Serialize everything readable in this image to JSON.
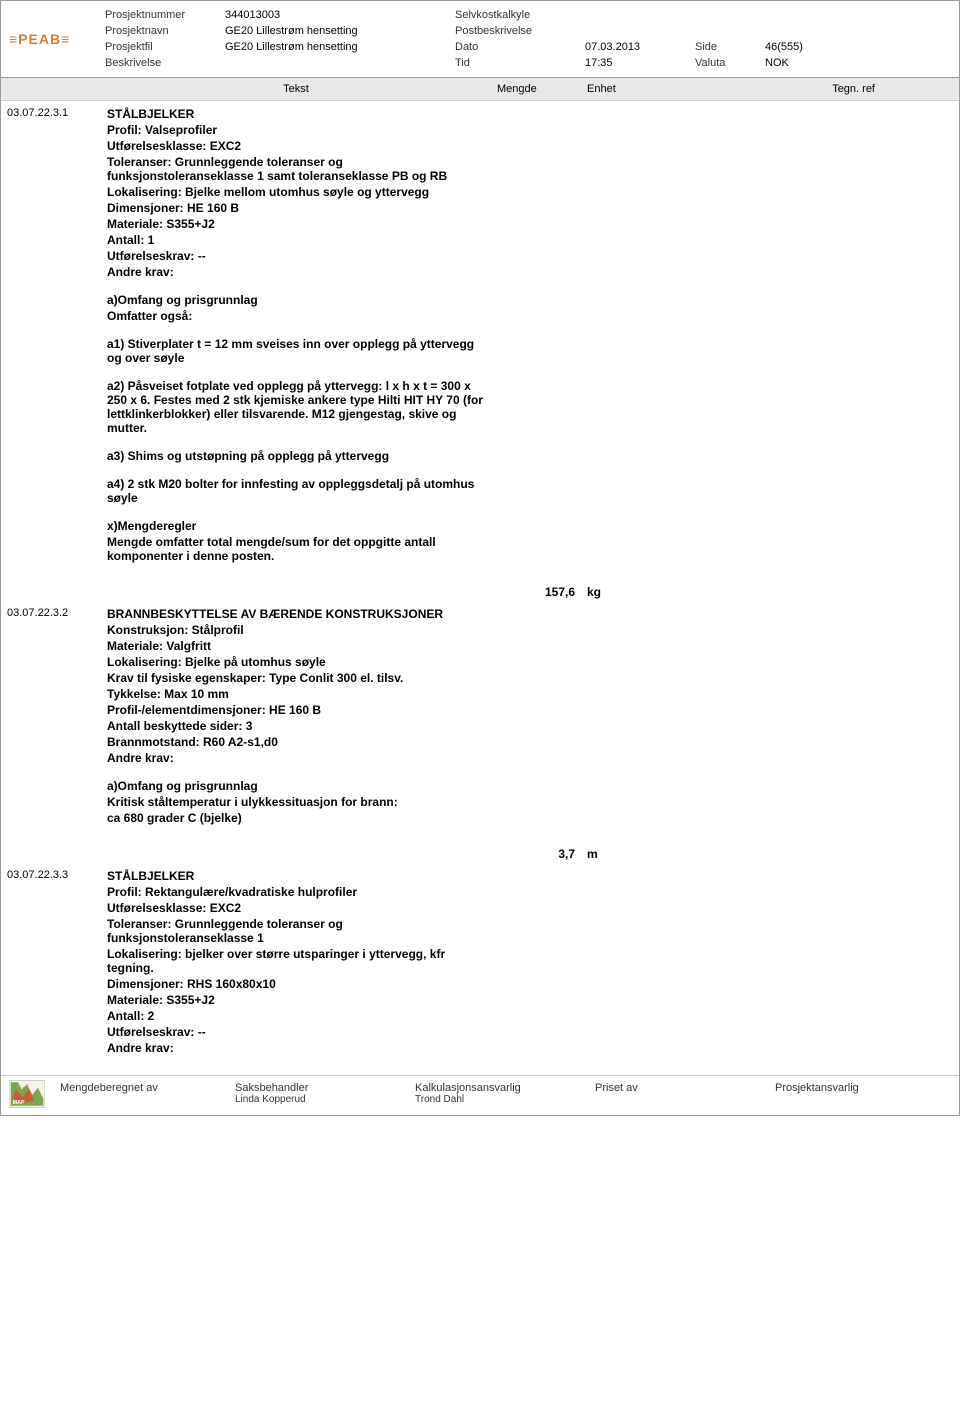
{
  "header": {
    "labels": {
      "prosjektnummer": "Prosjektnummer",
      "prosjektnavn": "Prosjektnavn",
      "prosjektfil": "Prosjektfil",
      "beskrivelse": "Beskrivelse"
    },
    "prosjektnummer": "344013003",
    "prosjektnavn": "GE20 Lillestrøm hensetting",
    "prosjektfil": "GE20 Lillestrøm hensetting",
    "right": {
      "selvkost": "Selvkostkalkyle",
      "postbeskrivelse": "Postbeskrivelse",
      "dato_label": "Dato",
      "tid_label": "Tid",
      "dato": "07.03.2013",
      "tid": "17:35",
      "side_label": "Side",
      "valuta_label": "Valuta",
      "side": "46(555)",
      "valuta": "NOK"
    }
  },
  "columns": {
    "tekst": "Tekst",
    "mengde": "Mengde",
    "enhet": "Enhet",
    "tegn": "Tegn. ref"
  },
  "rows": [
    {
      "id": "03.07.22.3.1",
      "title": "STÅLBJELKER",
      "sections": [
        [
          "Profil: Valseprofiler",
          "Utførelsesklasse: EXC2",
          "Toleranser: Grunnleggende toleranser og funksjonstoleranseklasse 1 samt toleranseklasse PB og RB",
          "Lokalisering: Bjelke mellom utomhus søyle og yttervegg",
          "Dimensjoner: HE 160 B",
          "Materiale: S355+J2",
          "Antall: 1",
          "Utførelseskrav: --",
          "Andre krav:"
        ],
        [
          "a)Omfang og prisgrunnlag",
          "Omfatter også:"
        ],
        [
          "a1) Stiverplater t = 12 mm sveises inn over opplegg på yttervegg og over søyle"
        ],
        [
          "a2) Påsveiset fotplate ved opplegg på yttervegg: l x h x t = 300 x 250 x 6. Festes med 2 stk kjemiske ankere type Hilti HIT HY 70 (for lettklinkerblokker) eller tilsvarende. M12 gjengestag, skive og mutter."
        ],
        [
          "a3) Shims og utstøpning på opplegg på yttervegg"
        ],
        [
          "a4) 2 stk M20 bolter for innfesting av oppleggsdetalj på utomhus søyle"
        ],
        [
          "x)Mengderegler",
          "Mengde omfatter total mengde/sum for det oppgitte antall komponenter i denne posten."
        ]
      ],
      "mengde": "157,6",
      "enhet": "kg"
    },
    {
      "id": "03.07.22.3.2",
      "title": "BRANNBESKYTTELSE AV BÆRENDE KONSTRUKSJONER",
      "sections": [
        [
          "Konstruksjon: Stålprofil",
          "Materiale: Valgfritt",
          "Lokalisering: Bjelke på utomhus søyle",
          "Krav til fysiske egenskaper: Type Conlit 300 el. tilsv.",
          "Tykkelse: Max 10 mm",
          "Profil-/elementdimensjoner: HE 160 B",
          "Antall beskyttede sider: 3",
          "Brannmotstand: R60 A2-s1,d0",
          "Andre krav:"
        ],
        [
          "a)Omfang og prisgrunnlag",
          "Kritisk ståltemperatur i ulykkessituasjon for brann:",
          "ca 680 grader C (bjelke)"
        ]
      ],
      "mengde": "3,7",
      "enhet": "m"
    },
    {
      "id": "03.07.22.3.3",
      "title": "STÅLBJELKER",
      "sections": [
        [
          "Profil: Rektangulære/kvadratiske hulprofiler",
          "Utførelsesklasse: EXC2",
          "Toleranser: Grunnleggende toleranser og funksjonstoleranseklasse 1",
          "Lokalisering: bjelker over større utsparinger i yttervegg, kfr tegning.",
          "Dimensjoner: RHS 160x80x10",
          "Materiale: S355+J2",
          "Antall: 2",
          "Utførelseskrav: --",
          "Andre krav:"
        ]
      ],
      "mengde": "",
      "enhet": ""
    }
  ],
  "footer": {
    "mengdeberegnet_label": "Mengdeberegnet av",
    "saksbehandler_label": "Saksbehandler",
    "saksbehandler": "Linda Kopperud",
    "kalkulasjons_label": "Kalkulasjonsansvarlig",
    "kalkulasjons": "Trond Dahl",
    "priset_label": "Priset av",
    "prosjektansvarlig_label": "Prosjektansvarlig"
  }
}
